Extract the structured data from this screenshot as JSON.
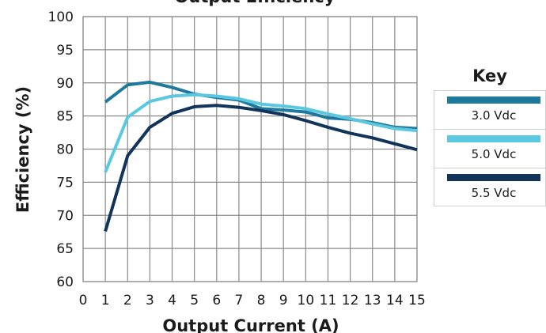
{
  "chart_data": {
    "type": "line",
    "title": "Output Efficiency",
    "xlabel": "Output Current (A)",
    "ylabel": "Efficiency (%)",
    "xlim": [
      0,
      15
    ],
    "ylim": [
      60,
      100
    ],
    "xticks": [
      "0",
      "1",
      "2",
      "3",
      "4",
      "5",
      "6",
      "7",
      "8",
      "9",
      "10",
      "11",
      "12",
      "13",
      "14",
      "15"
    ],
    "yticks": [
      "60",
      "65",
      "70",
      "75",
      "80",
      "85",
      "90",
      "95",
      "100"
    ],
    "grid": true,
    "legend_title": "Key",
    "legend_position": "right",
    "series": [
      {
        "name": "3.0 Vdc",
        "color": "#1d7a9c",
        "x": [
          1,
          2,
          3,
          4,
          5,
          6,
          7,
          8,
          9,
          10,
          11,
          12,
          13,
          14,
          15
        ],
        "y": [
          87.1,
          89.7,
          90.1,
          89.3,
          88.3,
          87.8,
          87.4,
          86.1,
          85.9,
          85.6,
          84.7,
          84.5,
          84.0,
          83.3,
          83.1
        ]
      },
      {
        "name": "5.0 Vdc",
        "color": "#5bc8e0",
        "x": [
          1,
          2,
          3,
          4,
          5,
          6,
          7,
          8,
          9,
          10,
          11,
          12,
          13,
          14,
          15
        ],
        "y": [
          76.5,
          84.8,
          87.2,
          88.0,
          88.2,
          88.0,
          87.6,
          86.8,
          86.5,
          86.1,
          85.3,
          84.6,
          83.8,
          83.1,
          82.8
        ]
      },
      {
        "name": "5.5 Vdc",
        "color": "#12345a",
        "x": [
          1,
          2,
          3,
          4,
          5,
          6,
          7,
          8,
          9,
          10,
          11,
          12,
          13,
          14,
          15
        ],
        "y": [
          67.6,
          79.0,
          83.3,
          85.4,
          86.4,
          86.6,
          86.3,
          85.8,
          85.2,
          84.3,
          83.3,
          82.4,
          81.7,
          80.8,
          79.9
        ]
      }
    ]
  }
}
